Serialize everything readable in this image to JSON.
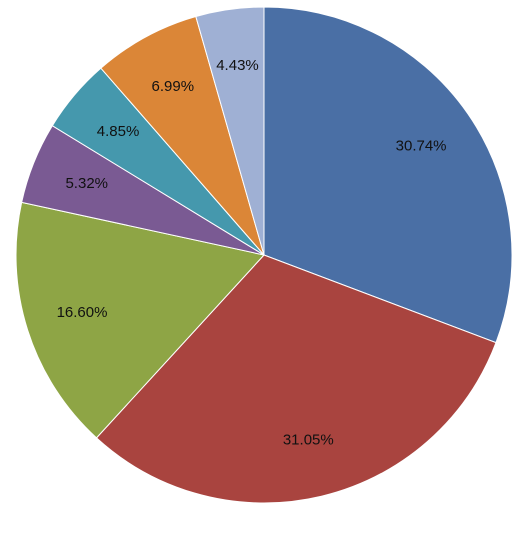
{
  "chart_data": {
    "type": "pie",
    "slices": [
      {
        "label": "30.74%",
        "value": 30.74,
        "color": "#4A6FA5"
      },
      {
        "label": "31.05%",
        "value": 31.05,
        "color": "#A9443F"
      },
      {
        "label": "16.60%",
        "value": 16.6,
        "color": "#8EA545"
      },
      {
        "label": "5.32%",
        "value": 5.32,
        "color": "#7A5A93"
      },
      {
        "label": "4.85%",
        "value": 4.85,
        "color": "#4598AD"
      },
      {
        "label": "6.99%",
        "value": 6.99,
        "color": "#DB8637"
      },
      {
        "label": "4.43%",
        "value": 4.43,
        "color": "#9FB0D4"
      }
    ],
    "start_angle": "top",
    "direction": "clockwise",
    "legend": "none",
    "data_labels": true
  }
}
